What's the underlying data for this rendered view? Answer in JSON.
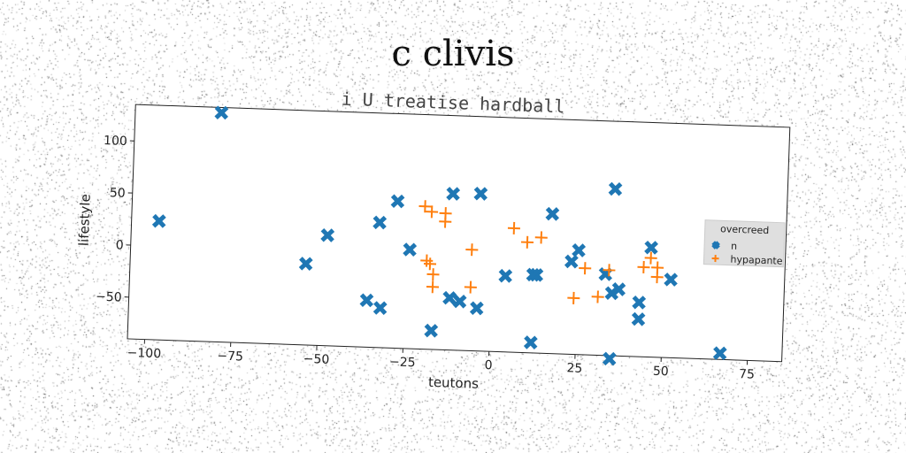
{
  "chart_data": {
    "type": "scatter",
    "title": "c clivis",
    "subtitle": "i U treatise hardball",
    "xlabel": "teutons",
    "ylabel": "lifestyle",
    "xlim": [
      -105,
      85
    ],
    "ylim": [
      -90,
      135
    ],
    "xticks": [
      -100,
      -75,
      -50,
      -25,
      0,
      25,
      50,
      75
    ],
    "yticks": [
      -50,
      0,
      50,
      100
    ],
    "xtick_labels": [
      "−100",
      "−75",
      "−50",
      "−25",
      "0",
      "25",
      "50",
      "75"
    ],
    "ytick_labels": [
      "−50",
      "0",
      "50",
      "100"
    ],
    "grid": false,
    "legend": {
      "title": "overcreed",
      "placement": "right"
    },
    "series": [
      {
        "name": "n",
        "marker": "x",
        "color": "#1f77b4",
        "points": [
          [
            -97,
            24
          ],
          [
            -80,
            130
          ],
          [
            -54,
            -12
          ],
          [
            -48,
            16
          ],
          [
            -33,
            30
          ],
          [
            -28,
            51
          ],
          [
            -24,
            5
          ],
          [
            -12,
            60
          ],
          [
            -4,
            61
          ],
          [
            -32,
            -52
          ],
          [
            -36,
            -45
          ],
          [
            -12,
            -40
          ],
          [
            -9,
            -43
          ],
          [
            -4,
            -49
          ],
          [
            -17,
            -72
          ],
          [
            4,
            -17
          ],
          [
            13,
            -15
          ],
          [
            17,
            44
          ],
          [
            12,
            -80
          ],
          [
            23,
            -1
          ],
          [
            25,
            10
          ],
          [
            33,
            -12
          ],
          [
            35,
            -30
          ],
          [
            37,
            -26
          ],
          [
            35,
            70
          ],
          [
            43,
            -38
          ],
          [
            43,
            -54
          ],
          [
            46,
            15
          ],
          [
            52,
            -15
          ],
          [
            67,
            -84
          ],
          [
            35,
            -93
          ],
          [
            12,
            -15
          ]
        ]
      },
      {
        "name": "hypapante",
        "marker": "+",
        "color": "#ff7f0e",
        "points": [
          [
            -20,
            47
          ],
          [
            -18,
            42
          ],
          [
            -14,
            41
          ],
          [
            -14,
            33
          ],
          [
            -19,
            -5
          ],
          [
            -18,
            -8
          ],
          [
            -17,
            -18
          ],
          [
            -17,
            -30
          ],
          [
            -6,
            7
          ],
          [
            -6,
            -29
          ],
          [
            6,
            29
          ],
          [
            10,
            16
          ],
          [
            14,
            21
          ],
          [
            27,
            -7
          ],
          [
            24,
            -36
          ],
          [
            31,
            -34
          ],
          [
            34,
            -8
          ],
          [
            44,
            -4
          ],
          [
            46,
            5
          ],
          [
            48,
            -4
          ],
          [
            48,
            -13
          ]
        ]
      }
    ]
  }
}
